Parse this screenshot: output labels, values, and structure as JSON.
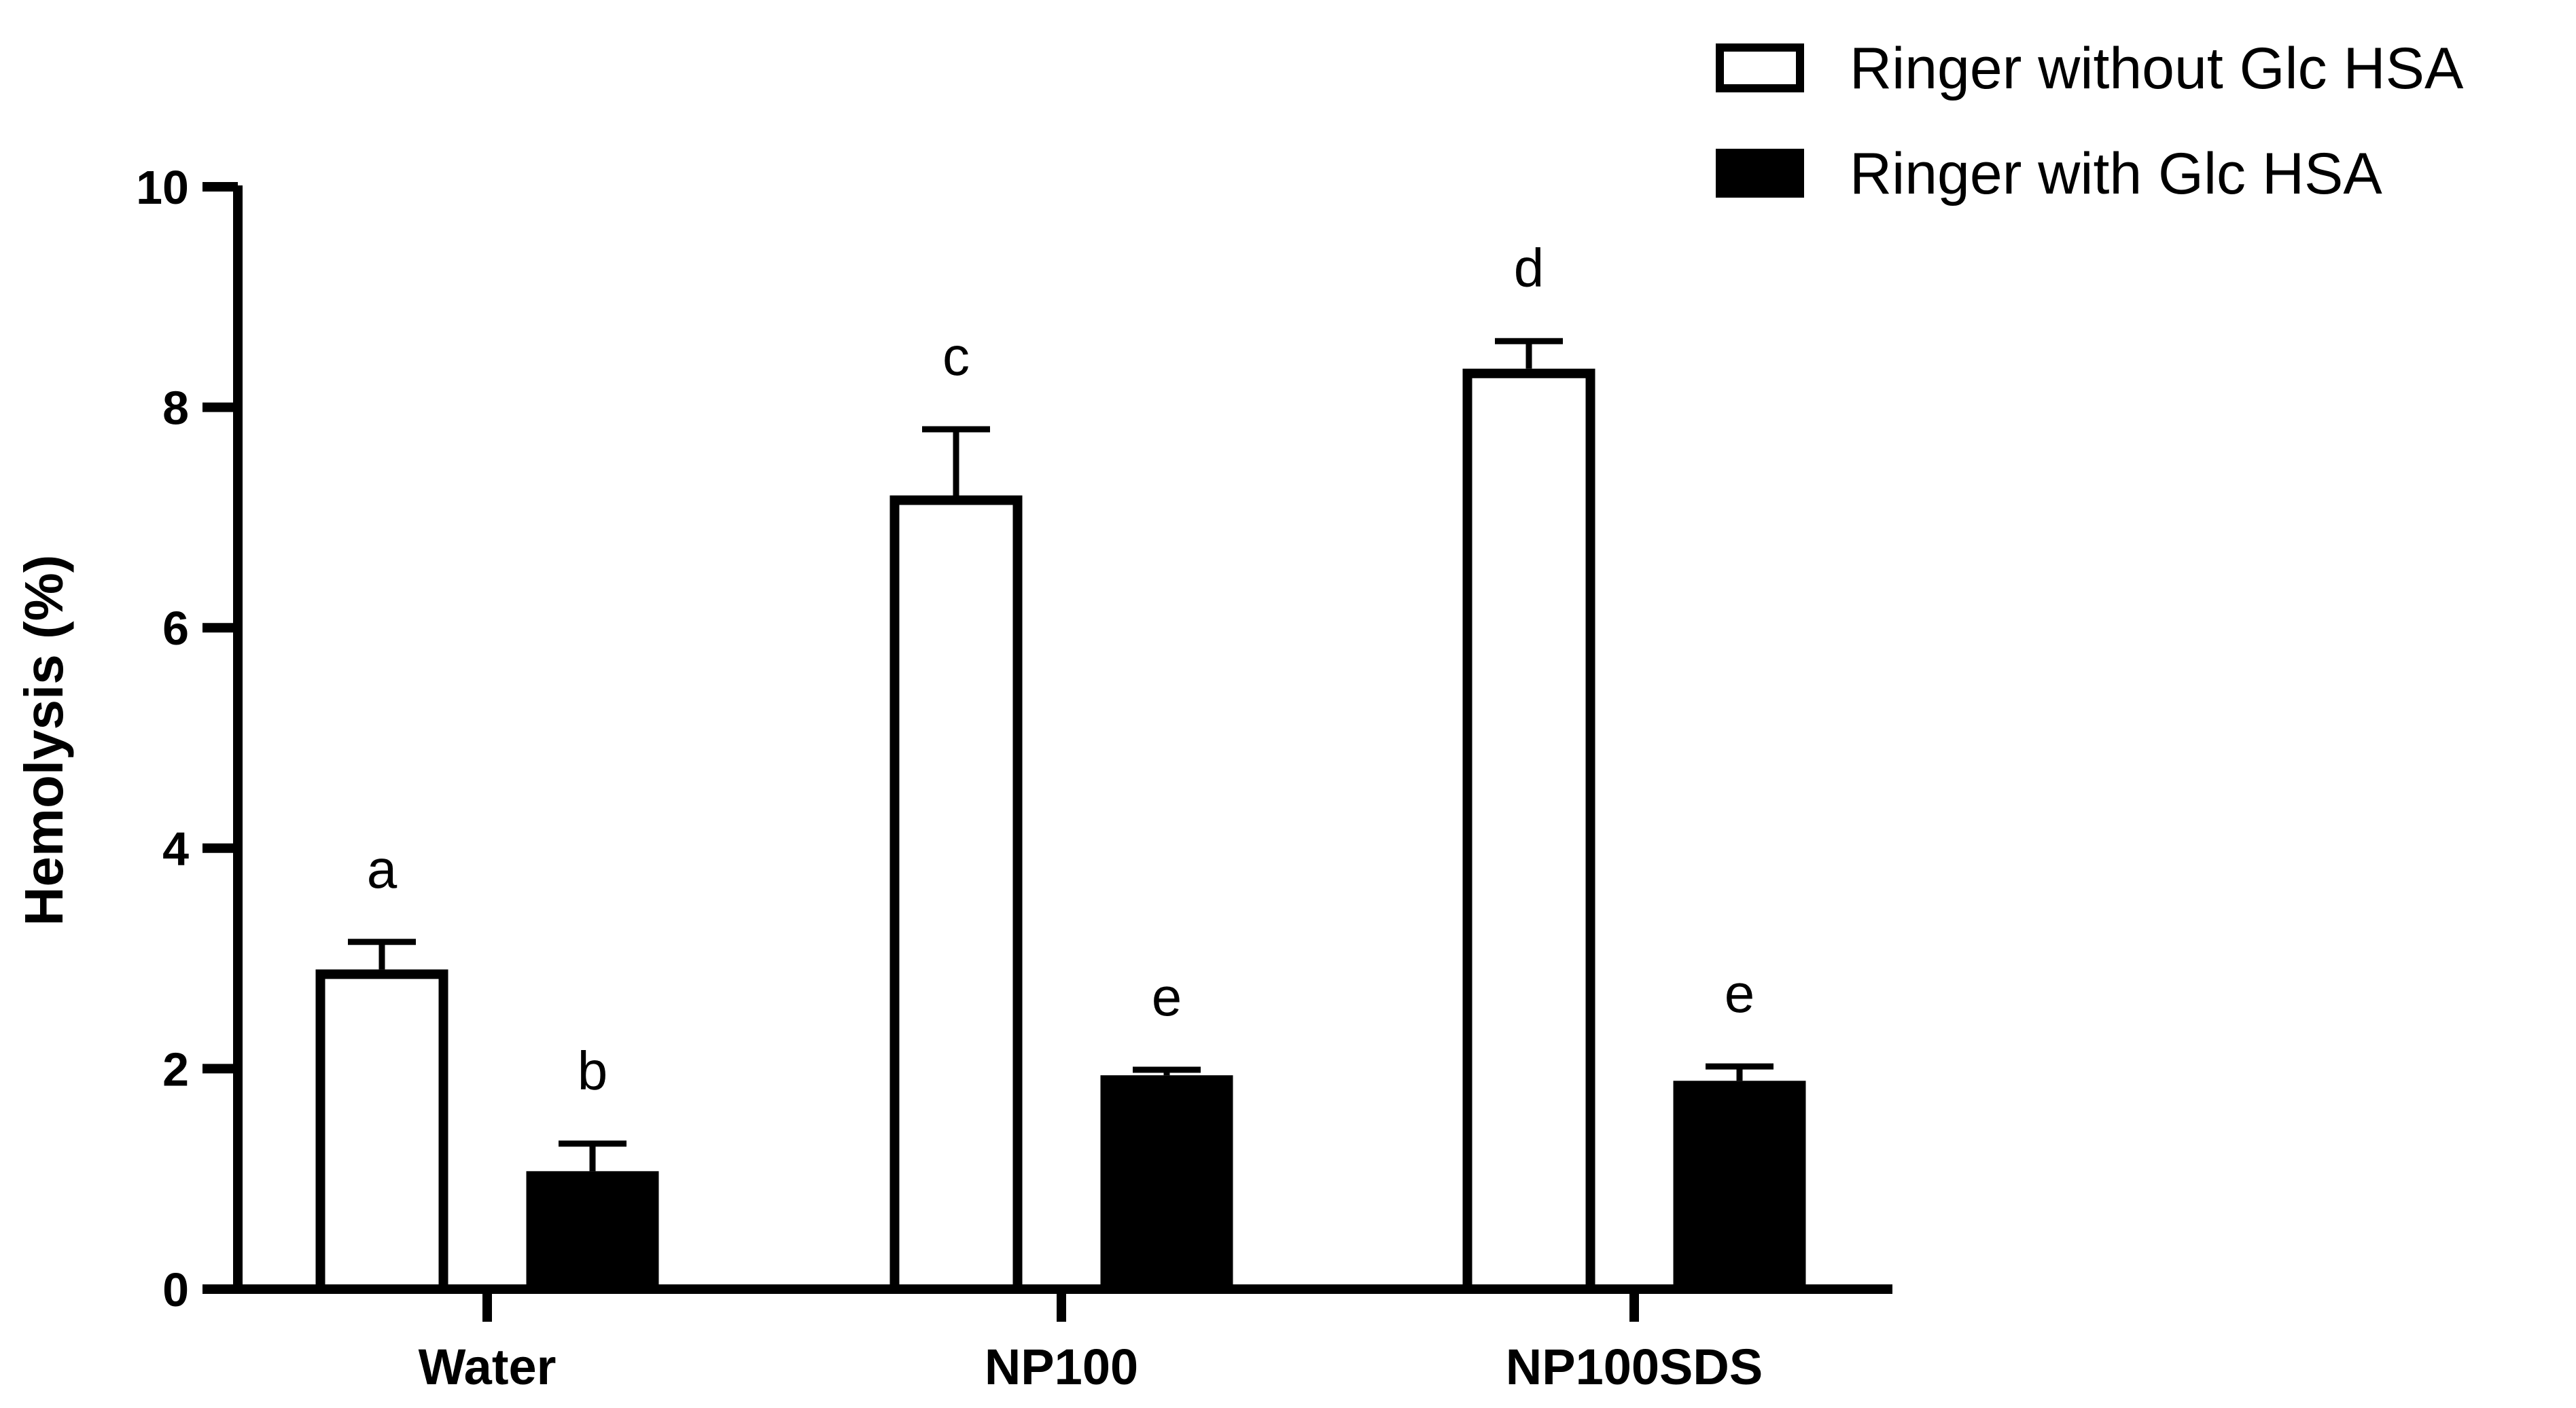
{
  "chart_data": {
    "type": "bar",
    "ylabel": "Hemolysis (%)",
    "xlabel": "",
    "ylim": [
      0,
      10
    ],
    "yticks": [
      0,
      2,
      4,
      6,
      8,
      10
    ],
    "categories": [
      "Water",
      "NP100",
      "NP100SDS"
    ],
    "series": [
      {
        "name": "Ringer without Glc HSA",
        "fill": "#ffffff",
        "values": [
          2.9,
          7.2,
          8.35
        ],
        "errors": [
          0.25,
          0.6,
          0.25
        ],
        "letters": [
          "a",
          "c",
          "d"
        ]
      },
      {
        "name": "Ringer with Glc HSA",
        "fill": "#000000",
        "values": [
          1.07,
          1.94,
          1.89
        ],
        "errors": [
          0.25,
          0.05,
          0.13
        ],
        "letters": [
          "b",
          "e",
          "e"
        ]
      }
    ],
    "legend_position": "top-right",
    "grid": false
  }
}
